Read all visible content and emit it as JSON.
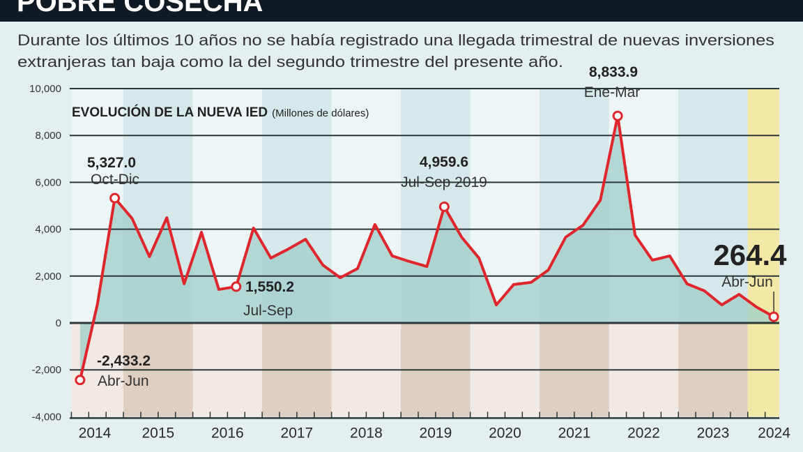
{
  "header": {
    "title": "POBRE COSECHA",
    "subtitle_line1": "Durante los últimos 10 años no se había registrado una llegada trimestral de nuevas inversiones",
    "subtitle_line2": "extranjeras tan baja como la del segundo trimestre del presente año."
  },
  "colors": {
    "header_bg": "#0f1a24",
    "background": "#e3eff1",
    "line": "#e0262d",
    "area_fill": "#9fcdc8",
    "band_light_pos": "#edf5f6",
    "band_dark_pos": "#d6e8ea",
    "band_light_neg": "#f4e7e0",
    "band_dark_neg": "#ddc5b6",
    "highlight_band": "#f2e9a6"
  },
  "chart_data": {
    "type": "area",
    "title": "EVOLUCIÓN DE LA NUEVA IED",
    "title_unit": "(Millones de dólares)",
    "xlabel": "",
    "ylabel": "",
    "ylim": [
      -4000,
      10000
    ],
    "yticks": [
      10000,
      8000,
      6000,
      4000,
      2000,
      0,
      -2000,
      -4000
    ],
    "ytick_labels": [
      "10,000",
      "8,000",
      "6,000",
      "4,000",
      "2,000",
      "0",
      "-2,000",
      "-4,000"
    ],
    "years": [
      "2014",
      "2015",
      "2016",
      "2017",
      "2018",
      "2019",
      "2020",
      "2021",
      "2022",
      "2023",
      "2024"
    ],
    "highlight_year": "2024",
    "grid": true,
    "x": [
      "2014-Q2",
      "2014-Q3",
      "2014-Q4",
      "2015-Q1",
      "2015-Q2",
      "2015-Q3",
      "2015-Q4",
      "2016-Q1",
      "2016-Q2",
      "2016-Q3",
      "2016-Q4",
      "2017-Q1",
      "2017-Q2",
      "2017-Q3",
      "2017-Q4",
      "2018-Q1",
      "2018-Q2",
      "2018-Q3",
      "2018-Q4",
      "2019-Q1",
      "2019-Q2",
      "2019-Q3",
      "2019-Q4",
      "2020-Q1",
      "2020-Q2",
      "2020-Q3",
      "2020-Q4",
      "2021-Q1",
      "2021-Q2",
      "2021-Q3",
      "2021-Q4",
      "2022-Q1",
      "2022-Q2",
      "2022-Q3",
      "2022-Q4",
      "2023-Q1",
      "2023-Q2",
      "2023-Q3",
      "2023-Q4",
      "2024-Q1",
      "2024-Q2"
    ],
    "values": [
      -2433.2,
      800,
      5327.0,
      4460,
      2830,
      4490,
      1670,
      3870,
      1430,
      1550.2,
      4050,
      2770,
      3150,
      3570,
      2470,
      1930,
      2320,
      4200,
      2860,
      2620,
      2410,
      4959.6,
      3660,
      2770,
      770,
      1640,
      1730,
      2260,
      3660,
      4170,
      5240,
      8833.9,
      3750,
      2680,
      2860,
      1670,
      1370,
      770,
      1220,
      680,
      264.4
    ],
    "annotations": [
      {
        "x": "2014-Q4",
        "value": "5,327.0",
        "label": "Oct-Dic"
      },
      {
        "x": "2014-Q2",
        "value": "-2,433.2",
        "label": "Abr-Jun"
      },
      {
        "x": "2016-Q3",
        "value": "1,550.2",
        "label": "Jul-Sep"
      },
      {
        "x": "2019-Q3",
        "value": "4,959.6",
        "label": "Jul-Sep 2019"
      },
      {
        "x": "2022-Q1",
        "value": "8,833.9",
        "label": "Ene-Mar"
      },
      {
        "x": "2024-Q2",
        "value": "264.4",
        "label": "Abr-Jun"
      }
    ]
  }
}
